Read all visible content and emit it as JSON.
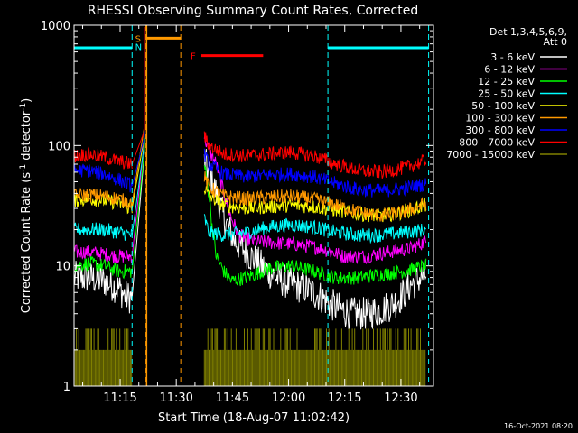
{
  "chart_data": {
    "type": "line",
    "title": "RHESSI Observing Summary Count Rates, Corrected",
    "xlabel": "Start Time (18-Aug-07 11:02:42)",
    "ylabel_main": "Corrected Count Rate (s",
    "ylabel_sup1": "-1",
    "ylabel_mid": " detector",
    "ylabel_sup2": "-1",
    "ylabel_end": ")",
    "x_range_min": [
      0,
      96
    ],
    "y_log": true,
    "ylim": [
      1,
      1000
    ],
    "yticks": [
      {
        "v": 1,
        "label": "1"
      },
      {
        "v": 10,
        "label": "10"
      },
      {
        "v": 100,
        "label": "100"
      },
      {
        "v": 1000,
        "label": "1000"
      }
    ],
    "xticks": [
      {
        "t": 12.3,
        "label": "11:15"
      },
      {
        "t": 27.3,
        "label": "11:30"
      },
      {
        "t": 42.3,
        "label": "11:45"
      },
      {
        "t": 57.3,
        "label": "12:00"
      },
      {
        "t": 72.3,
        "label": "12:15"
      },
      {
        "t": 87.3,
        "label": "12:30"
      }
    ],
    "legend_header": [
      "Det 1,3,4,5,6,9,",
      "Att 0"
    ],
    "series": [
      {
        "name": "3 - 6 keV",
        "color": "#ffffff",
        "pre": [
          [
            0,
            8
          ],
          [
            4,
            8
          ],
          [
            8,
            7.5
          ],
          [
            12,
            6.5
          ],
          [
            14,
            5.5
          ],
          [
            15.5,
            5.5
          ]
        ],
        "post": [
          [
            34.8,
            75
          ],
          [
            36,
            60
          ],
          [
            38,
            40
          ],
          [
            40,
            25
          ],
          [
            43,
            16
          ],
          [
            46,
            13
          ],
          [
            50,
            10
          ],
          [
            54,
            8
          ],
          [
            58,
            7
          ],
          [
            62,
            6.5
          ],
          [
            66,
            5.5
          ],
          [
            70,
            4.5
          ],
          [
            74,
            4
          ],
          [
            78,
            4
          ],
          [
            82,
            4.3
          ],
          [
            86,
            5
          ],
          [
            90,
            7
          ],
          [
            94,
            8.5
          ]
        ]
      },
      {
        "name": "6 - 12 keV",
        "color": "#ff00ff",
        "pre": [
          [
            0,
            13
          ],
          [
            4,
            13
          ],
          [
            8,
            12.5
          ],
          [
            12,
            12
          ],
          [
            15.5,
            12
          ]
        ],
        "post": [
          [
            34.8,
            120
          ],
          [
            36,
            90
          ],
          [
            38,
            70
          ],
          [
            40,
            40
          ],
          [
            42,
            25
          ],
          [
            44,
            18
          ],
          [
            48,
            16
          ],
          [
            54,
            15.5
          ],
          [
            60,
            15
          ],
          [
            66,
            14
          ],
          [
            72,
            12
          ],
          [
            78,
            12
          ],
          [
            84,
            13
          ],
          [
            90,
            14
          ],
          [
            94,
            16
          ]
        ]
      },
      {
        "name": "12 - 25 keV",
        "color": "#00ff00",
        "pre": [
          [
            0,
            10
          ],
          [
            4,
            10.5
          ],
          [
            8,
            10
          ],
          [
            12,
            9
          ],
          [
            15.5,
            9
          ]
        ],
        "post": [
          [
            34.8,
            70
          ],
          [
            36,
            40
          ],
          [
            37,
            20
          ],
          [
            38,
            12
          ],
          [
            40,
            9
          ],
          [
            42,
            7.5
          ],
          [
            46,
            8
          ],
          [
            52,
            9.5
          ],
          [
            58,
            10
          ],
          [
            64,
            9
          ],
          [
            70,
            8
          ],
          [
            76,
            8
          ],
          [
            82,
            8.5
          ],
          [
            88,
            9
          ],
          [
            94,
            10
          ]
        ]
      },
      {
        "name": "25 - 50 keV",
        "color": "#00ffff",
        "pre": [
          [
            0,
            20
          ],
          [
            4,
            20
          ],
          [
            8,
            20
          ],
          [
            12,
            19
          ],
          [
            15.5,
            18
          ]
        ],
        "post": [
          [
            34.8,
            25
          ],
          [
            36,
            19
          ],
          [
            40,
            18
          ],
          [
            46,
            19
          ],
          [
            52,
            21
          ],
          [
            58,
            22
          ],
          [
            64,
            21
          ],
          [
            70,
            19
          ],
          [
            76,
            18
          ],
          [
            82,
            18
          ],
          [
            88,
            19
          ],
          [
            94,
            20
          ]
        ]
      },
      {
        "name": "50 - 100 keV",
        "color": "#ffff00",
        "pre": [
          [
            0,
            35
          ],
          [
            4,
            36
          ],
          [
            8,
            35
          ],
          [
            12,
            33
          ],
          [
            15.5,
            30
          ]
        ],
        "post": [
          [
            34.8,
            45
          ],
          [
            36,
            38
          ],
          [
            40,
            32
          ],
          [
            46,
            30
          ],
          [
            52,
            31
          ],
          [
            58,
            32
          ],
          [
            64,
            31
          ],
          [
            70,
            29
          ],
          [
            76,
            27
          ],
          [
            82,
            26
          ],
          [
            88,
            28
          ],
          [
            94,
            32
          ]
        ]
      },
      {
        "name": "100 - 300 keV",
        "color": "#ff9900",
        "pre": [
          [
            0,
            38
          ],
          [
            4,
            39
          ],
          [
            8,
            38
          ],
          [
            12,
            36
          ],
          [
            15.5,
            33
          ]
        ],
        "post": [
          [
            34.8,
            55
          ],
          [
            36,
            45
          ],
          [
            40,
            38
          ],
          [
            46,
            36
          ],
          [
            52,
            37
          ],
          [
            58,
            38
          ],
          [
            64,
            36
          ],
          [
            70,
            32
          ],
          [
            76,
            28
          ],
          [
            82,
            26
          ],
          [
            88,
            28
          ],
          [
            94,
            33
          ]
        ]
      },
      {
        "name": "300 - 800 keV",
        "color": "#0000ff",
        "pre": [
          [
            0,
            62
          ],
          [
            4,
            62
          ],
          [
            8,
            58
          ],
          [
            12,
            52
          ],
          [
            15.5,
            46
          ]
        ],
        "post": [
          [
            34.8,
            85
          ],
          [
            36,
            70
          ],
          [
            40,
            58
          ],
          [
            46,
            55
          ],
          [
            52,
            57
          ],
          [
            58,
            58
          ],
          [
            64,
            55
          ],
          [
            70,
            48
          ],
          [
            76,
            43
          ],
          [
            82,
            42
          ],
          [
            88,
            44
          ],
          [
            94,
            48
          ]
        ]
      },
      {
        "name": "800 - 7000 keV",
        "color": "#ff0000",
        "pre": [
          [
            0,
            82
          ],
          [
            4,
            85
          ],
          [
            8,
            80
          ],
          [
            12,
            74
          ],
          [
            15.5,
            70
          ]
        ],
        "post": [
          [
            34.8,
            120
          ],
          [
            36,
            100
          ],
          [
            40,
            85
          ],
          [
            46,
            82
          ],
          [
            52,
            85
          ],
          [
            58,
            88
          ],
          [
            64,
            82
          ],
          [
            70,
            70
          ],
          [
            76,
            62
          ],
          [
            82,
            60
          ],
          [
            88,
            65
          ],
          [
            94,
            75
          ]
        ]
      },
      {
        "name": "7000 - 15000 keV",
        "color": "#808000",
        "pre": [
          [
            0,
            2
          ],
          [
            15.5,
            2
          ]
        ],
        "post": [
          [
            34.8,
            2
          ],
          [
            94,
            2
          ]
        ]
      }
    ],
    "spike": {
      "t0": 15.5,
      "t1": 18.8,
      "peaks": [
        150,
        170,
        130,
        140
      ]
    },
    "vertical_lines": [
      {
        "t": 15.5,
        "color": "#00ffff"
      },
      {
        "t": 19.2,
        "color": "#ff9900"
      },
      {
        "t": 28.5,
        "color": "#ff9900"
      },
      {
        "t": 67.8,
        "color": "#00ffff"
      },
      {
        "t": 94.7,
        "color": "#00ffff"
      }
    ],
    "flag_bars": [
      {
        "label": "",
        "color": "#00ffff",
        "t0": 0,
        "t1": 15.5,
        "y": 650
      },
      {
        "label": "S",
        "label2": "N",
        "color": "#ff9900",
        "label2_color": "#00ffff",
        "t0": 19.2,
        "t1": 28.5,
        "y": 780
      },
      {
        "label": "F",
        "color": "#ff0000",
        "t0": 34.0,
        "t1": 50.5,
        "y": 560
      },
      {
        "label": "",
        "color": "#00ffff",
        "t0": 67.8,
        "t1": 94.7,
        "y": 650
      }
    ],
    "grid": false,
    "legend_position": "right"
  },
  "timestamp": "16-Oct-2021 08:20"
}
